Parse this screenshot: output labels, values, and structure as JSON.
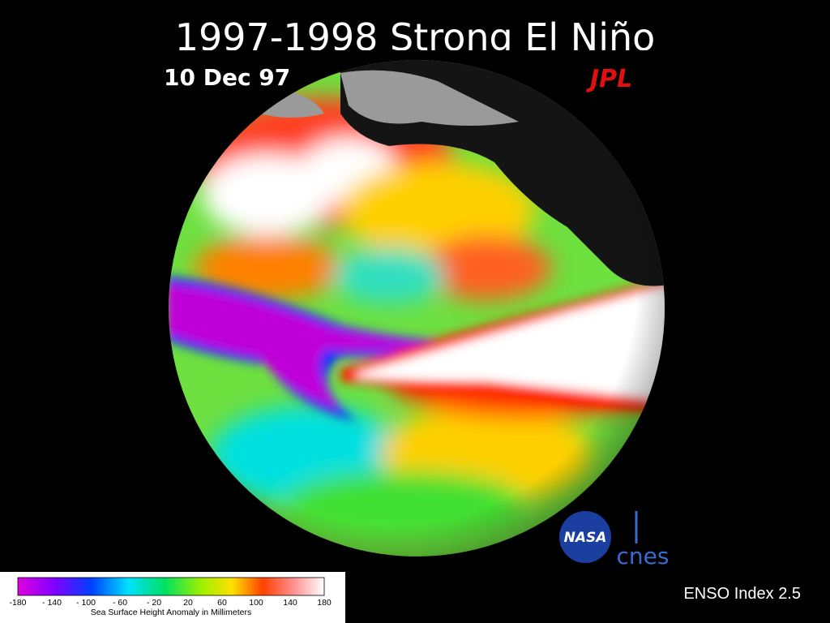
{
  "title": "1997-1998 Strong El Niño",
  "image": {
    "date": "10 Dec 97",
    "logo": "JPL",
    "agency_1": "NASA",
    "agency_2": "cnes"
  },
  "colorbar": {
    "ticks": [
      "-180",
      "- 140",
      "- 100",
      "- 60",
      "- 20",
      "20",
      "60",
      "100",
      "140",
      "180"
    ],
    "caption": "Sea Surface Height Anomaly in Millimeters"
  },
  "footnote": "ENSO Index 2.5"
}
